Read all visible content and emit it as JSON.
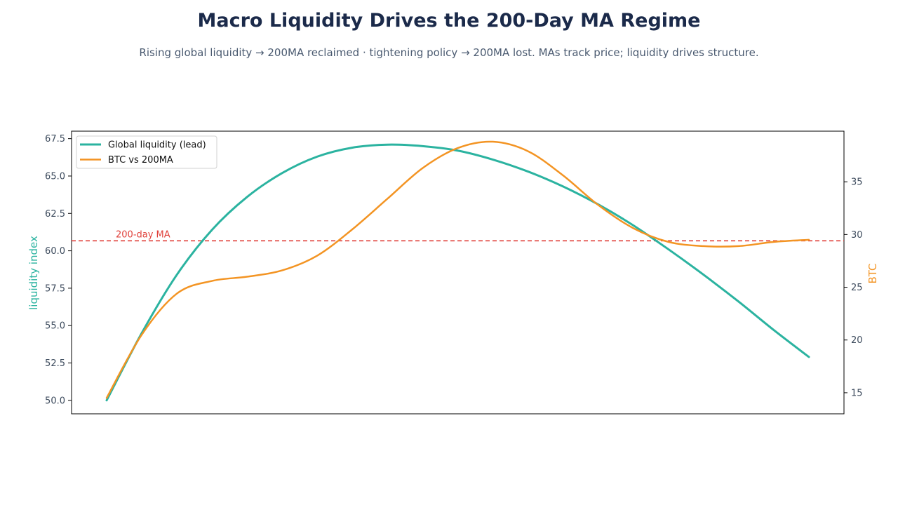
{
  "title": "Macro Liquidity Drives the 200-Day MA Regime",
  "subtitle": "Rising global liquidity → 200MA reclaimed · tightening policy → 200MA lost. MAs track price; liquidity drives structure.",
  "colors": {
    "liquidity": "#2bb3a0",
    "btc": "#f39423",
    "ma_line": "#e0413b",
    "text": "#3c4a5c"
  },
  "chart_data": {
    "type": "line",
    "title": "Macro Liquidity Drives the 200-Day MA Regime",
    "ylabel_left": "liquidity index",
    "ylabel_right": "BTC",
    "x": [
      0,
      1,
      2,
      3,
      4,
      5,
      6,
      7,
      8,
      9,
      10,
      11,
      12,
      13,
      14,
      15,
      16,
      17,
      18,
      19,
      20
    ],
    "ylim_left": [
      49.1,
      68.0
    ],
    "ylim_right": [
      13.0,
      39.8
    ],
    "yticks_left": [
      "50.0",
      "52.5",
      "55.0",
      "57.5",
      "60.0",
      "62.5",
      "65.0",
      "67.5"
    ],
    "yticks_right": [
      "15",
      "20",
      "25",
      "30",
      "35"
    ],
    "grid": false,
    "legend_position": "top-left",
    "series": [
      {
        "name": "Global liquidity (lead)",
        "axis": "left",
        "values": [
          50.0,
          54.5,
          58.4,
          61.4,
          63.6,
          65.2,
          66.3,
          66.9,
          67.1,
          67.0,
          66.7,
          66.1,
          65.3,
          64.3,
          63.1,
          61.7,
          60.1,
          58.4,
          56.6,
          54.7,
          52.9
        ]
      },
      {
        "name": "BTC vs 200MA",
        "axis": "right",
        "values": [
          14.5,
          20.5,
          24.4,
          25.6,
          26.0,
          26.6,
          28.0,
          30.5,
          33.4,
          36.3,
          38.2,
          38.8,
          37.9,
          35.6,
          32.8,
          30.6,
          29.3,
          28.9,
          28.9,
          29.3,
          29.5
        ]
      }
    ],
    "reference_line": {
      "label": "200-day MA",
      "axis": "left",
      "value": 60.67,
      "style": "dashed"
    }
  }
}
